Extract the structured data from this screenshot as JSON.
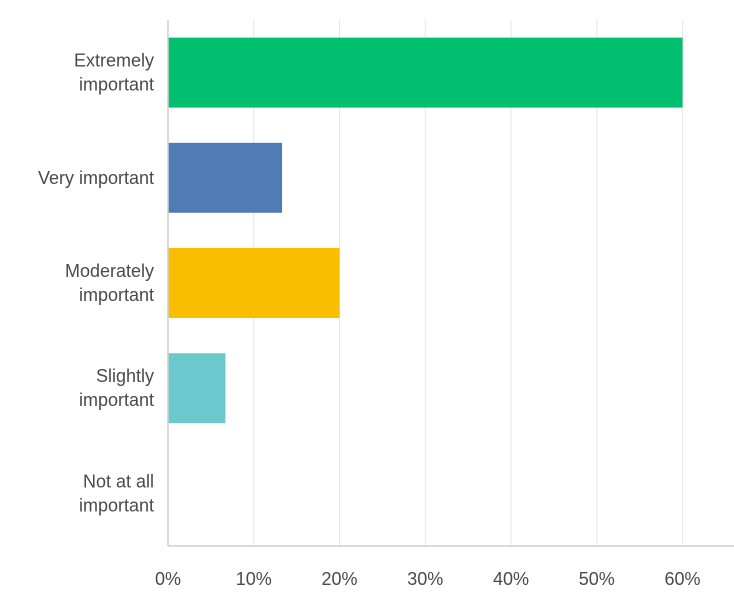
{
  "chart_data": {
    "type": "bar",
    "orientation": "horizontal",
    "categories": [
      [
        "Extremely",
        "important"
      ],
      [
        "Very important"
      ],
      [
        "Moderately",
        "important"
      ],
      [
        "Slightly",
        "important"
      ],
      [
        "Not at all",
        "important"
      ]
    ],
    "values": [
      60,
      13.3,
      20,
      6.7,
      0
    ],
    "colors": [
      "#00bf6f",
      "#507cb6",
      "#f9be00",
      "#6bc8cd",
      "#ff8b4f"
    ],
    "xlim": [
      0,
      66
    ],
    "xticks": [
      0,
      10,
      20,
      30,
      40,
      50,
      60
    ],
    "tick_suffix": "%",
    "grid": true
  }
}
